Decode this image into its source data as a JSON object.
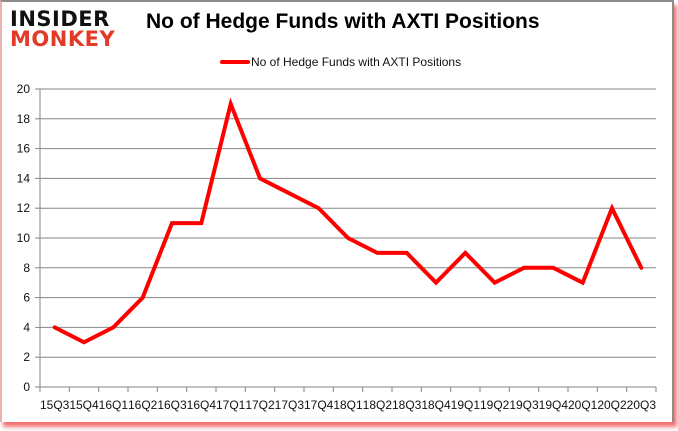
{
  "logo": {
    "line1": "INSIDER",
    "line2": "MONKEY"
  },
  "title": "No of Hedge Funds with AXTI Positions",
  "legend": {
    "label": "No of Hedge Funds with AXTI Positions",
    "color": "#ff0000"
  },
  "colors": {
    "line": "#ff0000",
    "grid": "#868686",
    "axis": "#868686",
    "logo_red": "#e23a27"
  },
  "chart_data": {
    "type": "line",
    "title": "No of Hedge Funds with AXTI Positions",
    "xlabel": "",
    "ylabel": "",
    "ylim": [
      0,
      20
    ],
    "yticks": [
      0,
      2,
      4,
      6,
      8,
      10,
      12,
      14,
      16,
      18,
      20
    ],
    "grid": true,
    "legend_position": "top",
    "categories": [
      "15Q3",
      "15Q4",
      "16Q1",
      "16Q2",
      "16Q3",
      "16Q4",
      "17Q1",
      "17Q2",
      "17Q3",
      "17Q4",
      "18Q1",
      "18Q2",
      "18Q3",
      "18Q4",
      "19Q1",
      "19Q2",
      "19Q3",
      "19Q4",
      "20Q1",
      "20Q2",
      "20Q3"
    ],
    "series": [
      {
        "name": "No of Hedge Funds with AXTI Positions",
        "color": "#ff0000",
        "values": [
          4,
          3,
          4,
          6,
          11,
          11,
          19,
          14,
          13,
          12,
          10,
          9,
          9,
          7,
          9,
          7,
          8,
          8,
          7,
          12,
          8
        ]
      }
    ]
  }
}
